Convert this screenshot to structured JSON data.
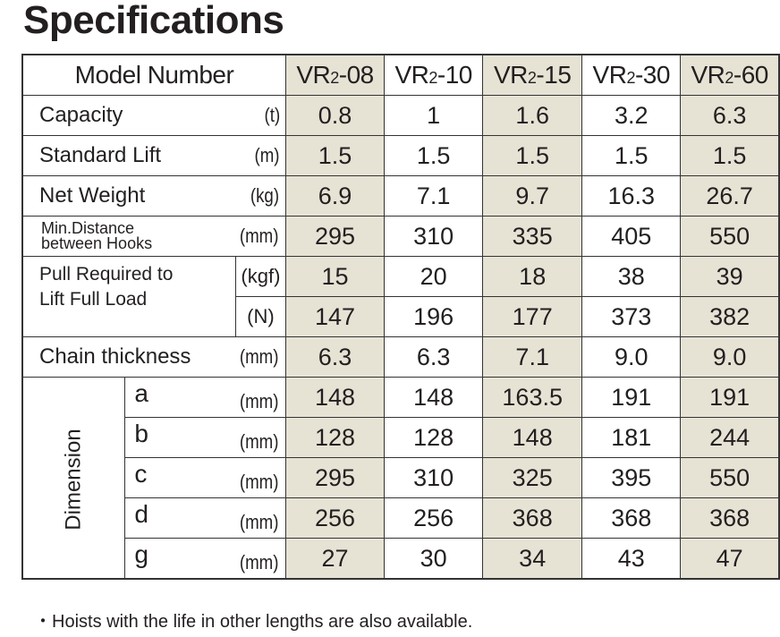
{
  "title": "Specifications",
  "header": {
    "label": "Model Number",
    "models": [
      {
        "prefix": "VR",
        "sub": "2",
        "suffix": "-08"
      },
      {
        "prefix": "VR",
        "sub": "2",
        "suffix": "-10"
      },
      {
        "prefix": "VR",
        "sub": "2",
        "suffix": "-15"
      },
      {
        "prefix": "VR",
        "sub": "2",
        "suffix": "-30"
      },
      {
        "prefix": "VR",
        "sub": "2",
        "suffix": "-60"
      }
    ]
  },
  "shade_color": "#e6e3d5",
  "rows": [
    {
      "label": "Capacity",
      "unit": "(t)",
      "values": [
        "0.8",
        "1",
        "1.6",
        "3.2",
        "6.3"
      ]
    },
    {
      "label": "Standard Lift",
      "unit": "(m)",
      "values": [
        "1.5",
        "1.5",
        "1.5",
        "1.5",
        "1.5"
      ]
    },
    {
      "label": "Net Weight",
      "unit": "(kg)",
      "values": [
        "6.9",
        "7.1",
        "9.7",
        "16.3",
        "26.7"
      ]
    },
    {
      "label_line1": "Min.Distance",
      "label_line2": "between Hooks",
      "unit": "(mm)",
      "values": [
        "295",
        "310",
        "335",
        "405",
        "550"
      ]
    }
  ],
  "pull": {
    "label_line1": "Pull Required to",
    "label_line2": "Lift Full Load",
    "rows": [
      {
        "unit": "(kgf)",
        "values": [
          "15",
          "20",
          "18",
          "38",
          "39"
        ]
      },
      {
        "unit": "(N)",
        "values": [
          "147",
          "196",
          "177",
          "373",
          "382"
        ]
      }
    ]
  },
  "chain": {
    "label": "Chain thickness",
    "unit": "(mm)",
    "values": [
      "6.3",
      "6.3",
      "7.1",
      "9.0",
      "9.0"
    ]
  },
  "dimension": {
    "label": "Dimension",
    "rows": [
      {
        "letter": "a",
        "unit": "(mm)",
        "values": [
          "148",
          "148",
          "163.5",
          "191",
          "191"
        ]
      },
      {
        "letter": "b",
        "unit": "(mm)",
        "values": [
          "128",
          "128",
          "148",
          "181",
          "244"
        ]
      },
      {
        "letter": "c",
        "unit": "(mm)",
        "values": [
          "295",
          "310",
          "325",
          "395",
          "550"
        ]
      },
      {
        "letter": "d",
        "unit": "(mm)",
        "values": [
          "256",
          "256",
          "368",
          "368",
          "368"
        ]
      },
      {
        "letter": "g",
        "unit": "(mm)",
        "values": [
          "27",
          "30",
          "34",
          "43",
          "47"
        ]
      }
    ]
  },
  "note": "・Hoists with the life in other lengths are also available."
}
